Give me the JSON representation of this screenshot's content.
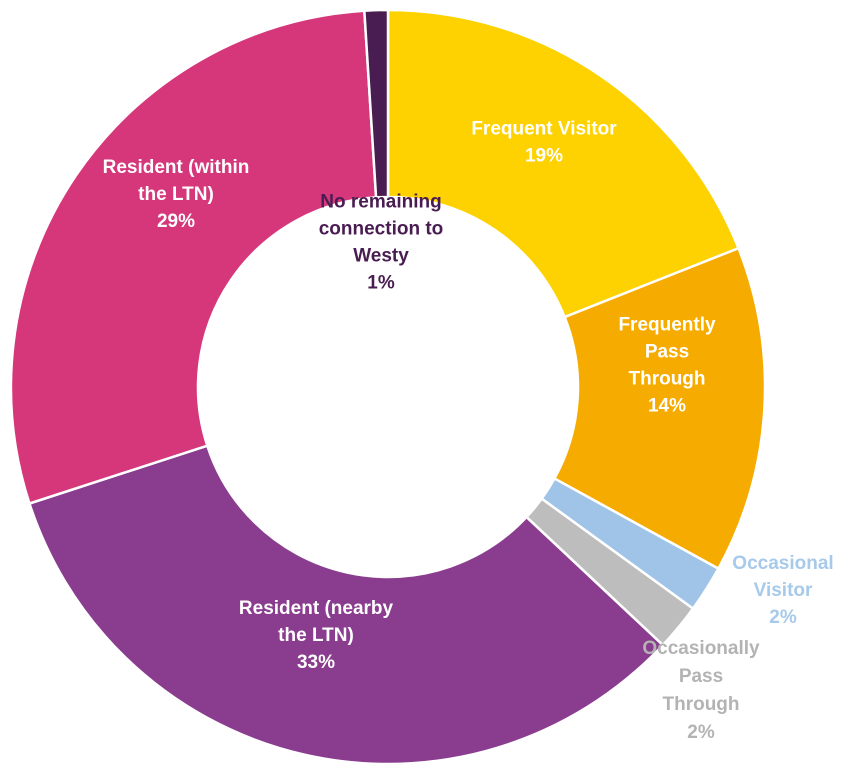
{
  "chart_data": {
    "type": "pie",
    "donut": true,
    "categories": [
      "Frequent Visitor",
      "Frequently Pass Through",
      "Occasional Visitor",
      "Occasionally Pass Through",
      "Resident (nearby the LTN)",
      "Resident (within the LTN)",
      "No remaining connection to Westy"
    ],
    "values": [
      19,
      14,
      2,
      2,
      33,
      29,
      1
    ],
    "colors": [
      "#fdd200",
      "#f6ab00",
      "#9fc4e8",
      "#bdbdbd",
      "#8a3c8f",
      "#d6367a",
      "#4a1d52"
    ],
    "label_colors": [
      "#ffffff",
      "#ffffff",
      "#a7c9ea",
      "#b3b3b3",
      "#ffffff",
      "#ffffff",
      "#4a1d52"
    ],
    "data_labels": [
      [
        "Frequent Visitor",
        "19%"
      ],
      [
        "Frequently",
        "Pass",
        "Through",
        "14%"
      ],
      [
        "Occasional",
        "Visitor",
        "2%"
      ],
      [
        "Occasionally",
        "Pass",
        "Through",
        "2%"
      ],
      [
        "Resident (nearby",
        "the LTN)",
        "33%"
      ],
      [
        "Resident (within",
        "the LTN)",
        "29%"
      ],
      [
        "No remaining",
        "connection to",
        "Westy",
        "1%"
      ]
    ],
    "title": "",
    "legend": "none"
  }
}
